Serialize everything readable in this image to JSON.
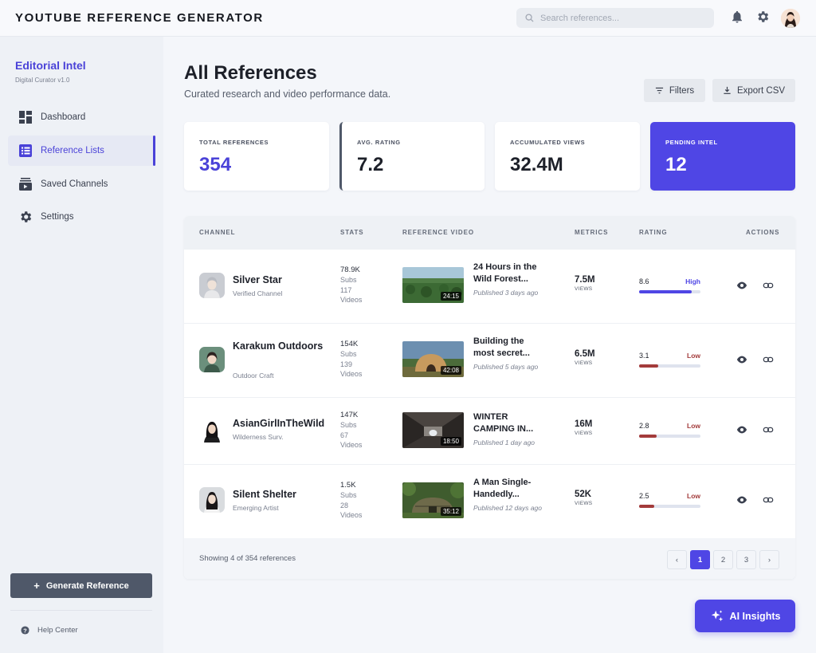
{
  "app": {
    "title": "YOUTUBE REFERENCE GENERATOR"
  },
  "search": {
    "placeholder": "Search references..."
  },
  "topbar_icons": [
    "bell-icon",
    "gear-icon",
    "user-avatar"
  ],
  "sidebar": {
    "title": "Editorial Intel",
    "subtitle": "Digital Curator v1.0",
    "items": [
      {
        "label": "Dashboard",
        "icon": "dashboard-icon",
        "active": false
      },
      {
        "label": "Reference Lists",
        "icon": "list-icon",
        "active": true
      },
      {
        "label": "Saved Channels",
        "icon": "subscriptions-icon",
        "active": false
      },
      {
        "label": "Settings",
        "icon": "gear-icon",
        "active": false
      }
    ],
    "generate_button": "Generate Reference",
    "help_label": "Help Center"
  },
  "header": {
    "title": "All References",
    "subtitle": "Curated research and video performance data.",
    "filters_label": "Filters",
    "export_label": "Export CSV"
  },
  "stats": [
    {
      "label": "TOTAL REFERENCES",
      "value": "354"
    },
    {
      "label": "AVG. RATING",
      "value": "7.2"
    },
    {
      "label": "ACCUMULATED VIEWS",
      "value": "32.4M"
    },
    {
      "label": "PENDING INTEL",
      "value": "12"
    }
  ],
  "table": {
    "columns": [
      "CHANNEL",
      "STATS",
      "REFERENCE VIDEO",
      "METRICS",
      "RATING",
      "ACTIONS"
    ],
    "rows": [
      {
        "channel": "Silver Star",
        "channel_sub": "Verified Channel",
        "subs": "78.9K",
        "subs_label": "Subs",
        "videos": "117",
        "videos_label": "Videos",
        "video_title": "24 Hours in the Wild Forest...",
        "published": "Published 3 days ago",
        "duration": "24:15",
        "views": "7.5M",
        "views_label": "VIEWS",
        "rating": "8.6",
        "rating_level": "High",
        "rating_fraction": 0.86,
        "rating_color": "#4f46e5"
      },
      {
        "channel": "Karakum Outdoors",
        "channel_sub": "Outdoor Craft",
        "subs": "154K",
        "subs_label": "Subs",
        "videos": "139",
        "videos_label": "Videos",
        "video_title": "Building the most secret...",
        "published": "Published 5 days ago",
        "duration": "42:08",
        "views": "6.5M",
        "views_label": "VIEWS",
        "rating": "3.1",
        "rating_level": "Low",
        "rating_fraction": 0.31,
        "rating_color": "#a33b3b"
      },
      {
        "channel": "AsianGirlInTheWild",
        "channel_sub": "Wilderness Surv.",
        "subs": "147K",
        "subs_label": "Subs",
        "videos": "67",
        "videos_label": "Videos",
        "video_title": "WINTER CAMPING IN...",
        "published": "Published 1 day ago",
        "duration": "18:50",
        "views": "16M",
        "views_label": "VIEWS",
        "rating": "2.8",
        "rating_level": "Low",
        "rating_fraction": 0.28,
        "rating_color": "#a33b3b"
      },
      {
        "channel": "Silent Shelter",
        "channel_sub": "Emerging Artist",
        "subs": "1.5K",
        "subs_label": "Subs",
        "videos": "28",
        "videos_label": "Videos",
        "video_title": "A Man Single-Handedly...",
        "published": "Published 12 days ago",
        "duration": "35:12",
        "views": "52K",
        "views_label": "VIEWS",
        "rating": "2.5",
        "rating_level": "Low",
        "rating_fraction": 0.25,
        "rating_color": "#a33b3b"
      }
    ],
    "footer": "Showing 4 of 354 references",
    "pages": [
      "‹",
      "1",
      "2",
      "3",
      "›"
    ],
    "current_page": "1"
  },
  "ai_button": "AI Insights",
  "colors": {
    "accent": "#4f46e5",
    "low": "#a33b3b",
    "high_text": "#4f46e5"
  }
}
